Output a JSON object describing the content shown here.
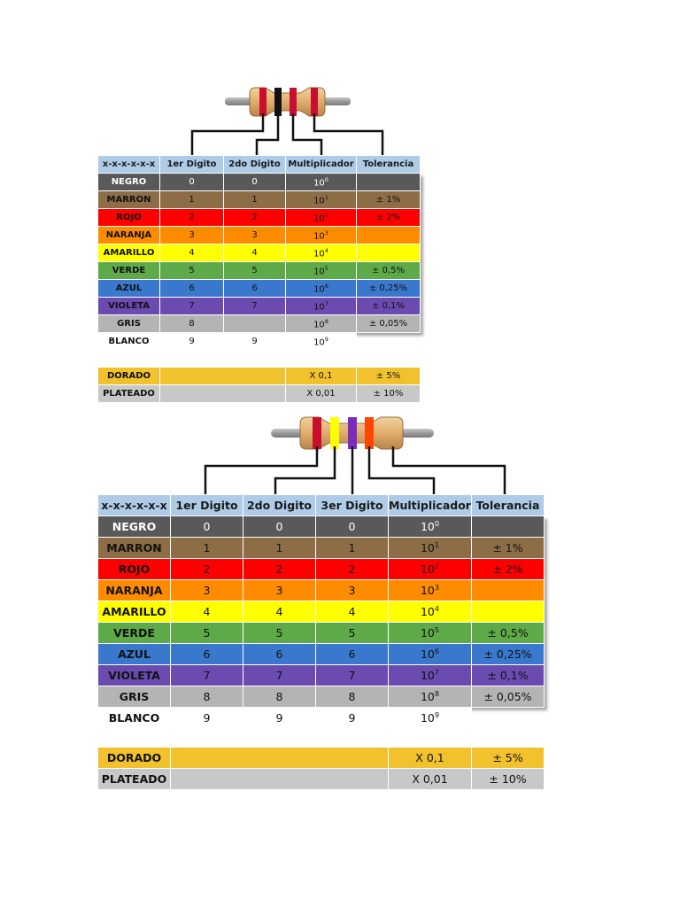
{
  "colors": [
    {
      "name": "NEGRO",
      "digit": "0",
      "mult_exp": "0",
      "tol": "",
      "bg": "#595959",
      "fg": "#ffffff"
    },
    {
      "name": "MARRON",
      "digit": "1",
      "mult_exp": "1",
      "tol": "± 1%",
      "bg": "#8c6d46",
      "fg": "#111111"
    },
    {
      "name": "ROJO",
      "digit": "2",
      "mult_exp": "2",
      "tol": "± 2%",
      "bg": "#ff0000",
      "fg": "#111111"
    },
    {
      "name": "NARANJA",
      "digit": "3",
      "mult_exp": "3",
      "tol": "",
      "bg": "#ff8c00",
      "fg": "#111111"
    },
    {
      "name": "AMARILLO",
      "digit": "4",
      "mult_exp": "4",
      "tol": "",
      "bg": "#ffff00",
      "fg": "#111111"
    },
    {
      "name": "VERDE",
      "digit": "5",
      "mult_exp": "5",
      "tol": "± 0,5%",
      "bg": "#5eaa48",
      "fg": "#111111"
    },
    {
      "name": "AZUL",
      "digit": "6",
      "mult_exp": "6",
      "tol": "± 0,25%",
      "bg": "#3a78cd",
      "fg": "#111111"
    },
    {
      "name": "VIOLETA",
      "digit": "7",
      "mult_exp": "7",
      "tol": "± 0,1%",
      "bg": "#6c4bb0",
      "fg": "#111111"
    },
    {
      "name": "GRIS",
      "digit": "8",
      "mult_exp": "8",
      "tol": "± 0,05%",
      "bg": "#b4b4b4",
      "fg": "#111111"
    },
    {
      "name": "BLANCO",
      "digit": "9",
      "mult_exp": "9",
      "tol": "",
      "bg": "#ffffff",
      "fg": "#111111"
    }
  ],
  "special_rows": [
    {
      "name": "DORADO",
      "mult": "X 0,1",
      "tol": "± 5%",
      "bg": "#f2c12e",
      "fg": "#111111"
    },
    {
      "name": "PLATEADO",
      "mult": "X 0,01",
      "tol": "± 10%",
      "bg": "#c8c8c8",
      "fg": "#111111"
    }
  ],
  "table1": {
    "headers": [
      "x-x-x-x-x-x",
      "1er Digito",
      "2do Digito",
      "Multiplicador",
      "Tolerancia"
    ]
  },
  "table2": {
    "headers": [
      "x-x-x-x-x-x",
      "1er Digito",
      "2do Digito",
      "3er Digito",
      "Multiplicador",
      "Tolerancia"
    ]
  },
  "resistor1": {
    "bands": [
      "#c8102e",
      "#111111",
      "#c8102e",
      "#c8102e"
    ]
  },
  "resistor2": {
    "bands": [
      "#c8102e",
      "#ffff00",
      "#7b2cbf",
      "#ff4500"
    ]
  }
}
